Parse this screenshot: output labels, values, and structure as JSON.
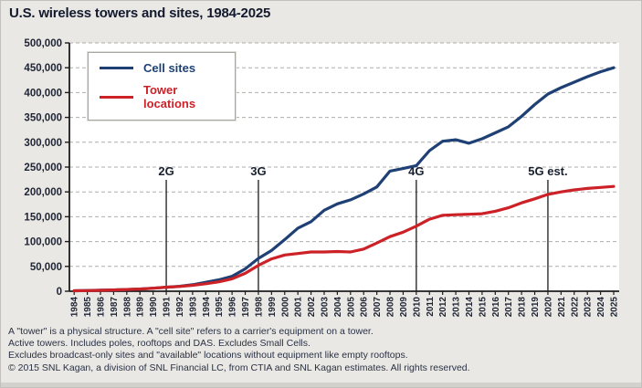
{
  "title": "U.S. wireless towers and sites, 1984-2025",
  "chart_data": {
    "type": "line",
    "x": [
      1984,
      1985,
      1986,
      1987,
      1988,
      1989,
      1990,
      1991,
      1992,
      1993,
      1994,
      1995,
      1996,
      1997,
      1998,
      1999,
      2000,
      2001,
      2002,
      2003,
      2004,
      2005,
      2006,
      2007,
      2008,
      2009,
      2010,
      2011,
      2012,
      2013,
      2014,
      2015,
      2016,
      2017,
      2018,
      2019,
      2020,
      2021,
      2022,
      2023,
      2024,
      2025
    ],
    "series": [
      {
        "name": "Cell sites",
        "color": "#1e4074",
        "values": [
          1000,
          1500,
          2000,
          2500,
          3500,
          4500,
          6000,
          8000,
          10000,
          13000,
          18000,
          23000,
          30000,
          45000,
          66000,
          82000,
          104000,
          127000,
          140000,
          163000,
          176000,
          184000,
          196000,
          210000,
          242000,
          247000,
          253000,
          283000,
          302000,
          305000,
          298000,
          307000,
          319000,
          331000,
          352000,
          376000,
          397000,
          410000,
          421000,
          432000,
          442000,
          450000
        ]
      },
      {
        "name": "Tower locations",
        "color": "#cc2127",
        "values": [
          1000,
          1200,
          1800,
          2500,
          3500,
          4500,
          6000,
          8000,
          9500,
          12000,
          15000,
          19000,
          25000,
          36000,
          52000,
          65000,
          73000,
          76000,
          79000,
          79000,
          80000,
          79000,
          85000,
          97000,
          110000,
          119000,
          131000,
          145000,
          153000,
          154000,
          155000,
          156000,
          161000,
          168000,
          178000,
          186000,
          195000,
          200000,
          204000,
          207000,
          209000,
          211000
        ]
      }
    ],
    "ylim": [
      0,
      500000
    ],
    "ytick_step": 50000,
    "xlabel": "",
    "ylabel": "",
    "grid": "horizontal-dashed",
    "legend_position": "top-left",
    "annotations": [
      {
        "label": "2G",
        "year": 1991
      },
      {
        "label": "3G",
        "year": 1998
      },
      {
        "label": "4G",
        "year": 2010
      },
      {
        "label": "5G est.",
        "year": 2020
      }
    ]
  },
  "footnotes": {
    "lines": [
      "A \"tower\" is a physical structure.  A \"cell site\" refers to a carrier's equipment on a tower.",
      "Active towers.  Includes poles, rooftops and DAS.  Excludes Small Cells.",
      "Excludes broadcast-only sites and \"available\" locations without equipment like empty rooftops.",
      "© 2015 SNL Kagan, a division of SNL Financial LC, from CTIA and SNL Kagan estimates. All rights reserved."
    ]
  }
}
